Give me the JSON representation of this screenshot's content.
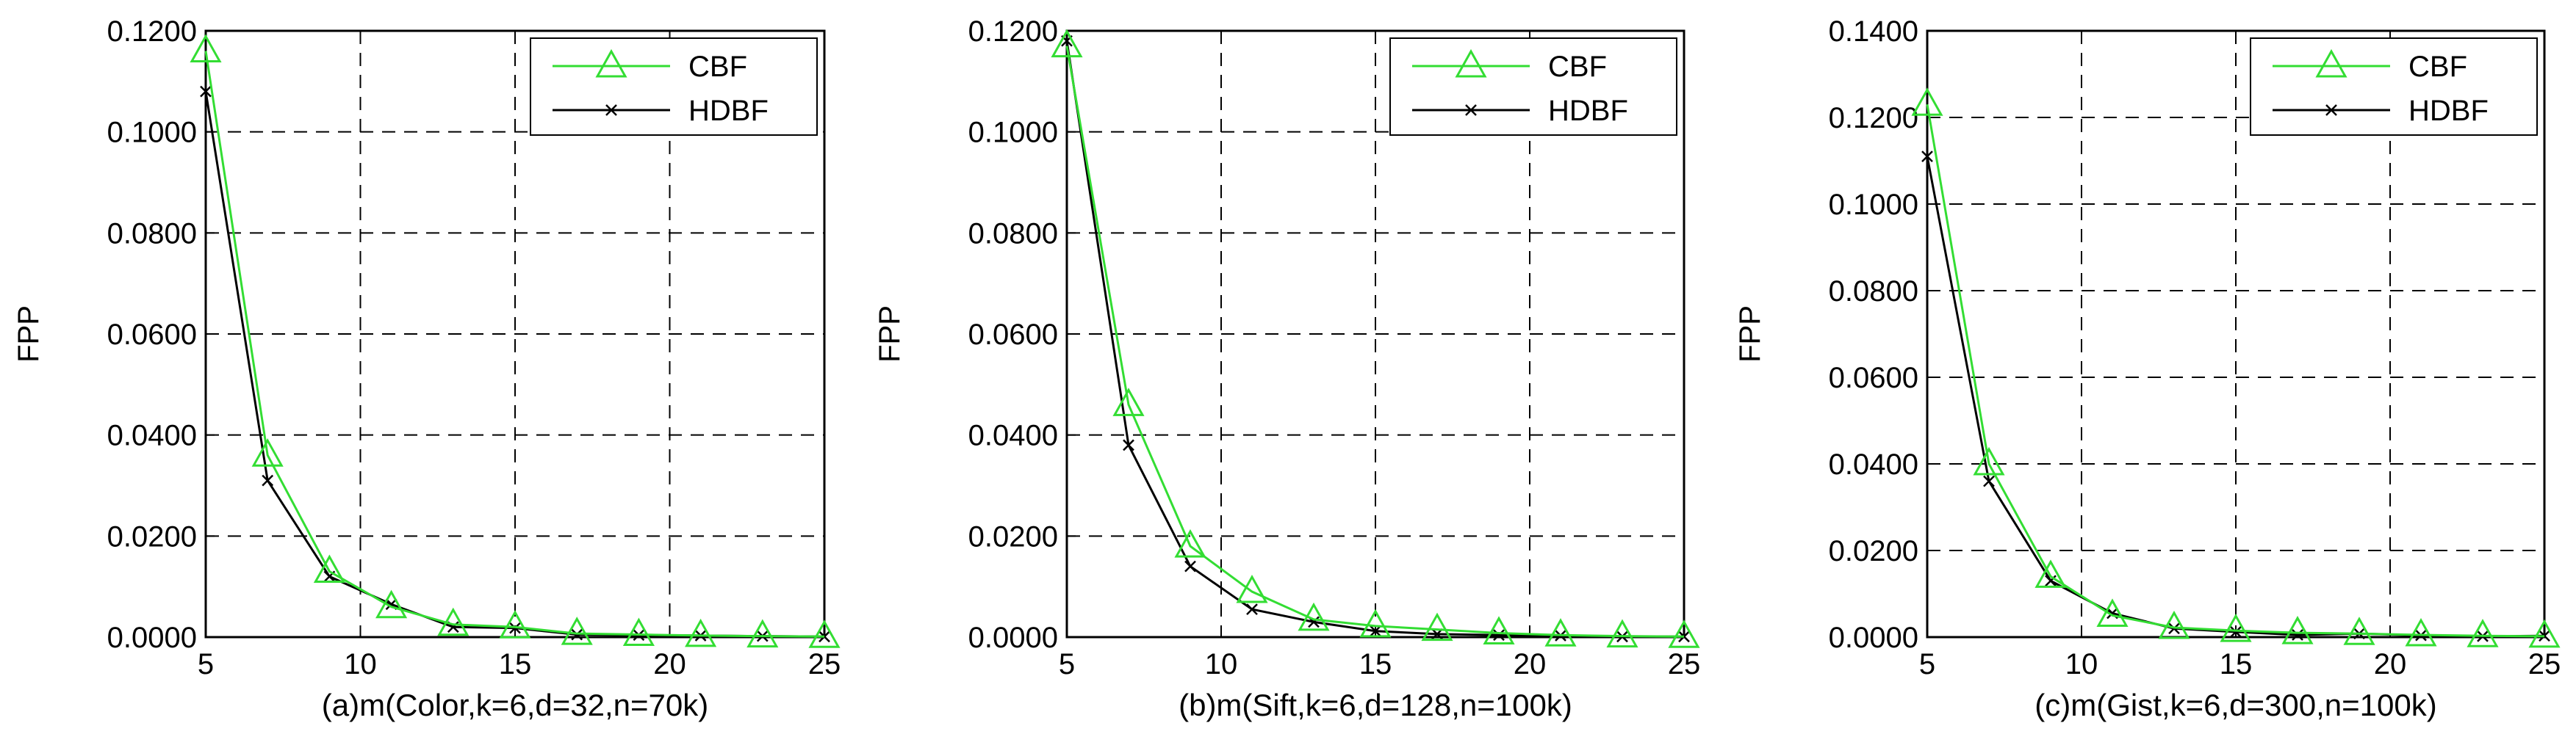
{
  "colors": {
    "CBF": "#33dd33",
    "HDBF": "#000000",
    "grid": "#000000",
    "axes": "#000000"
  },
  "chart_data": [
    {
      "type": "line",
      "xlabel": "(a)m(Color,k=6,d=32,n=70k)",
      "ylabel": "FPP",
      "xlim": [
        5,
        25
      ],
      "ylim": [
        0,
        0.12
      ],
      "xticks": [
        5,
        10,
        15,
        20,
        25
      ],
      "xtick_labels": [
        "5",
        "10",
        "15",
        "20",
        "25"
      ],
      "yticks": [
        0,
        0.02,
        0.04,
        0.06,
        0.08,
        0.1,
        0.12
      ],
      "ytick_labels": [
        "0.0000",
        "0.0200",
        "0.0400",
        "0.0600",
        "0.0800",
        "0.1000",
        "0.1200"
      ],
      "grid": true,
      "legend_position": "top-right",
      "x": [
        5,
        7,
        9,
        11,
        13,
        15,
        17,
        19,
        21,
        23,
        25
      ],
      "series": [
        {
          "name": "CBF",
          "marker": "triangle",
          "values": [
            0.116,
            0.036,
            0.013,
            0.006,
            0.0025,
            0.002,
            0.0007,
            0.0005,
            0.0003,
            0.0002,
            0.0001
          ]
        },
        {
          "name": "HDBF",
          "marker": "x",
          "values": [
            0.108,
            0.031,
            0.012,
            0.0065,
            0.002,
            0.0018,
            0.0005,
            0.0004,
            0.0003,
            0.0002,
            0.0001
          ]
        }
      ]
    },
    {
      "type": "line",
      "xlabel": "(b)m(Sift,k=6,d=128,n=100k)",
      "ylabel": "FPP",
      "xlim": [
        5,
        25
      ],
      "ylim": [
        0,
        0.12
      ],
      "xticks": [
        5,
        10,
        15,
        20,
        25
      ],
      "xtick_labels": [
        "5",
        "10",
        "15",
        "20",
        "25"
      ],
      "yticks": [
        0,
        0.02,
        0.04,
        0.06,
        0.08,
        0.1,
        0.12
      ],
      "ytick_labels": [
        "0.0000",
        "0.0200",
        "0.0400",
        "0.0600",
        "0.0800",
        "0.1000",
        "0.1200"
      ],
      "grid": true,
      "legend_position": "top-right",
      "x": [
        5,
        7,
        9,
        11,
        13,
        15,
        17,
        19,
        21,
        23,
        25
      ],
      "series": [
        {
          "name": "CBF",
          "marker": "triangle",
          "values": [
            0.117,
            0.046,
            0.018,
            0.009,
            0.0035,
            0.0022,
            0.0015,
            0.0008,
            0.0004,
            0.0002,
            0.0001
          ]
        },
        {
          "name": "HDBF",
          "marker": "x",
          "values": [
            0.118,
            0.038,
            0.014,
            0.0055,
            0.003,
            0.0012,
            0.0006,
            0.0004,
            0.0003,
            0.0001,
            0.0001
          ]
        }
      ]
    },
    {
      "type": "line",
      "xlabel": "(c)m(Gist,k=6,d=300,n=100k)",
      "ylabel": "FPP",
      "xlim": [
        5,
        25
      ],
      "ylim": [
        0,
        0.14
      ],
      "xticks": [
        5,
        10,
        15,
        20,
        25
      ],
      "xtick_labels": [
        "5",
        "10",
        "15",
        "20",
        "25"
      ],
      "yticks": [
        0,
        0.02,
        0.04,
        0.06,
        0.08,
        0.1,
        0.12,
        0.14
      ],
      "ytick_labels": [
        "0.0000",
        "0.0200",
        "0.0400",
        "0.0600",
        "0.0800",
        "0.1000",
        "0.1200",
        "0.1400"
      ],
      "grid": true,
      "legend_position": "top-right",
      "x": [
        5,
        7,
        9,
        11,
        13,
        15,
        17,
        19,
        21,
        23,
        25
      ],
      "series": [
        {
          "name": "CBF",
          "marker": "triangle",
          "values": [
            0.123,
            0.04,
            0.014,
            0.005,
            0.0022,
            0.0015,
            0.001,
            0.0008,
            0.0005,
            0.0003,
            0.0002
          ]
        },
        {
          "name": "HDBF",
          "marker": "x",
          "values": [
            0.111,
            0.036,
            0.013,
            0.0055,
            0.002,
            0.0012,
            0.0005,
            0.0008,
            0.0004,
            0.0002,
            0.0003
          ]
        }
      ]
    }
  ]
}
